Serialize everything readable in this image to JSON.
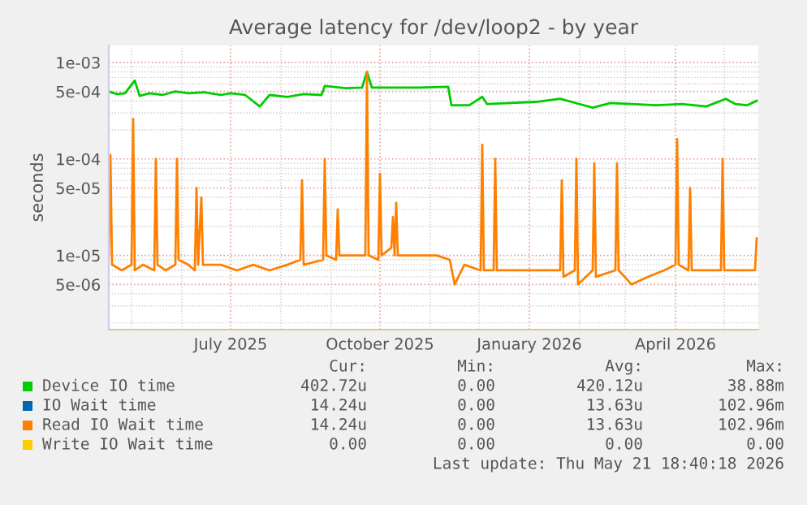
{
  "chart_data": {
    "type": "line",
    "title": "Average latency for /dev/loop2 - by year",
    "ylabel": "seconds",
    "log": "y",
    "grid": true,
    "legend": "bottom",
    "marker": "none",
    "line_style": "solid",
    "xlim": [
      "2025-04-17",
      "2026-05-22"
    ],
    "xticks": [
      {
        "value": "2025-07-01",
        "label": "July 2025"
      },
      {
        "value": "2025-10-01",
        "label": "October 2025"
      },
      {
        "value": "2026-01-01",
        "label": "January 2026"
      },
      {
        "value": "2026-04-01",
        "label": "April 2026"
      }
    ],
    "ylim": [
      1.7e-06,
      0.0015
    ],
    "yticks": [
      {
        "value": 5e-06,
        "label": "5e-06"
      },
      {
        "value": 1e-05,
        "label": "1e-05"
      },
      {
        "value": 5e-05,
        "label": "5e-05"
      },
      {
        "value": 0.0001,
        "label": "1e-04"
      },
      {
        "value": 0.0005,
        "label": "5e-04"
      },
      {
        "value": 0.001,
        "label": "1e-03"
      }
    ],
    "series": [
      {
        "name": "Device IO time",
        "color": "#00cc00",
        "x": [
          "2025-04-17",
          "2025-04-22",
          "2025-04-27",
          "2025-05-03",
          "2025-05-06",
          "2025-05-12",
          "2025-05-20",
          "2025-05-28",
          "2025-06-05",
          "2025-06-15",
          "2025-06-25",
          "2025-07-01",
          "2025-07-10",
          "2025-07-19",
          "2025-07-25",
          "2025-08-05",
          "2025-08-15",
          "2025-08-26",
          "2025-08-28",
          "2025-09-10",
          "2025-09-20",
          "2025-09-23",
          "2025-09-26",
          "2025-10-10",
          "2025-10-25",
          "2025-11-12",
          "2025-11-14",
          "2025-11-25",
          "2025-12-03",
          "2025-12-06",
          "2025-12-20",
          "2026-01-05",
          "2026-01-20",
          "2026-02-01",
          "2026-02-09",
          "2026-02-20",
          "2026-03-05",
          "2026-03-20",
          "2026-04-05",
          "2026-04-20",
          "2026-05-02",
          "2026-05-08",
          "2026-05-15",
          "2026-05-21"
        ],
        "values": [
          0.0005,
          0.00047,
          0.00048,
          0.00065,
          0.00045,
          0.00048,
          0.00046,
          0.0005,
          0.00048,
          0.00049,
          0.00046,
          0.00048,
          0.00046,
          0.00035,
          0.00046,
          0.00044,
          0.00047,
          0.00046,
          0.00057,
          0.00054,
          0.00055,
          0.0008,
          0.00055,
          0.00055,
          0.00055,
          0.00056,
          0.00036,
          0.00036,
          0.00044,
          0.00037,
          0.00038,
          0.00039,
          0.00042,
          0.00037,
          0.00034,
          0.00038,
          0.00037,
          0.00036,
          0.00037,
          0.00035,
          0.00042,
          0.00037,
          0.00036,
          0.0004
        ]
      },
      {
        "name": "IO Wait time",
        "color": "#0066b3"
      },
      {
        "name": "Read IO Wait time",
        "color": "#ff8000",
        "x": [
          "2025-04-17",
          "2025-04-18",
          "2025-04-19",
          "2025-04-25",
          "2025-05-01",
          "2025-05-02",
          "2025-05-03",
          "2025-05-08",
          "2025-05-15",
          "2025-05-16",
          "2025-05-17",
          "2025-05-22",
          "2025-05-28",
          "2025-05-29",
          "2025-05-30",
          "2025-06-05",
          "2025-06-09",
          "2025-06-10",
          "2025-06-11",
          "2025-06-13",
          "2025-06-14",
          "2025-06-25",
          "2025-07-05",
          "2025-07-15",
          "2025-07-25",
          "2025-08-05",
          "2025-08-13",
          "2025-08-14",
          "2025-08-15",
          "2025-08-27",
          "2025-08-28",
          "2025-08-29",
          "2025-09-04",
          "2025-09-05",
          "2025-09-06",
          "2025-09-15",
          "2025-09-22",
          "2025-09-23",
          "2025-09-24",
          "2025-09-30",
          "2025-10-01",
          "2025-10-02",
          "2025-10-08",
          "2025-10-09",
          "2025-10-10",
          "2025-10-11",
          "2025-10-12",
          "2025-10-25",
          "2025-11-05",
          "2025-11-13",
          "2025-11-16",
          "2025-11-22",
          "2025-12-02",
          "2025-12-03",
          "2025-12-04",
          "2025-12-10",
          "2025-12-11",
          "2025-12-12",
          "2025-12-25",
          "2026-01-10",
          "2026-01-20",
          "2026-01-21",
          "2026-01-22",
          "2026-01-29",
          "2026-01-30",
          "2026-01-31",
          "2026-02-09",
          "2026-02-10",
          "2026-02-11",
          "2026-02-23",
          "2026-02-24",
          "2026-02-25",
          "2026-03-05",
          "2026-03-15",
          "2026-03-25",
          "2026-04-01",
          "2026-04-02",
          "2026-04-03",
          "2026-04-09",
          "2026-04-10",
          "2026-04-11",
          "2026-04-20",
          "2026-04-29",
          "2026-04-30",
          "2026-05-01",
          "2026-05-10",
          "2026-05-20",
          "2026-05-21"
        ],
        "values": [
          1e-05,
          0.00011,
          8e-06,
          7e-06,
          8e-06,
          0.00026,
          7e-06,
          8e-06,
          7e-06,
          0.0001,
          8e-06,
          7e-06,
          8e-06,
          0.0001,
          9e-06,
          8e-06,
          7e-06,
          5e-05,
          8e-06,
          4e-05,
          8e-06,
          8e-06,
          7e-06,
          8e-06,
          7e-06,
          8e-06,
          9e-06,
          6e-05,
          8e-06,
          9e-06,
          0.0001,
          1e-05,
          9e-06,
          3e-05,
          1e-05,
          1e-05,
          1e-05,
          0.0008,
          1e-05,
          9e-06,
          7e-05,
          1e-05,
          1.2e-05,
          2.5e-05,
          1e-05,
          3.5e-05,
          1e-05,
          1e-05,
          1e-05,
          9e-06,
          5e-06,
          8e-06,
          7e-06,
          0.00014,
          7e-06,
          7e-06,
          0.0001,
          7e-06,
          7e-06,
          7e-06,
          7e-06,
          6e-05,
          6e-06,
          7e-06,
          0.0001,
          5e-06,
          7e-06,
          9e-05,
          6e-06,
          7e-06,
          9e-05,
          7e-06,
          5e-06,
          6e-06,
          7e-06,
          8e-06,
          0.00016,
          8e-06,
          7e-06,
          5e-05,
          7e-06,
          7e-06,
          7e-06,
          0.0001,
          7e-06,
          7e-06,
          7e-06,
          1.5e-05
        ]
      },
      {
        "name": "Write IO Wait time",
        "color": "#ffcc00"
      }
    ],
    "annotations": [
      "Cur:",
      "Min:",
      "Avg:",
      "Max:",
      "402.72u",
      "0.00",
      "420.12u",
      "38.88m",
      "14.24u",
      "0.00",
      "13.63u",
      "102.96m",
      "14.24u",
      "0.00",
      "13.63u",
      "102.96m",
      "0.00",
      "0.00",
      "0.00",
      "0.00",
      "Last update: Thu May 21 18:40:18 2026"
    ]
  }
}
